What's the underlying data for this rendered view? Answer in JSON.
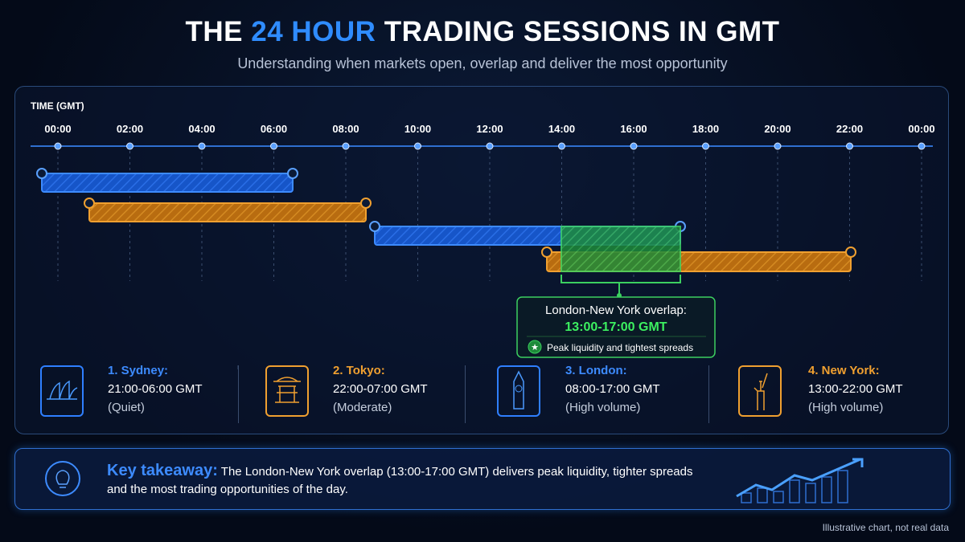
{
  "header": {
    "title": {
      "before": "THE",
      "highlight": "24 HOUR",
      "after": "TRADING SESSIONS IN GMT"
    },
    "subtitle": "Understanding when markets open, overlap and deliver the most opportunity"
  },
  "timeline": {
    "axis_label": "TIME (GMT)",
    "ticks": [
      "00:00",
      "02:00",
      "04:00",
      "06:00",
      "08:00",
      "10:00",
      "12:00",
      "14:00",
      "16:00",
      "18:00",
      "20:00",
      "22:00",
      "00:00"
    ]
  },
  "overlap": {
    "title": "London-New York overlap:",
    "time": "13:00-17:00 GMT",
    "note": "Peak liquidity and tightest spreads"
  },
  "sessions": [
    {
      "name": "1. Sydney:",
      "hours": "21:00-06:00 GMT",
      "note": "(Quiet)"
    },
    {
      "name": "2. Tokyo:",
      "hours": "22:00-07:00 GMT",
      "note": "(Moderate)"
    },
    {
      "name": "3. London:",
      "hours": "08:00-17:00 GMT",
      "note": "(High volume)"
    },
    {
      "name": "4. New York:",
      "hours": "13:00-22:00 GMT",
      "note": "(High volume)"
    }
  ],
  "takeaway": {
    "label": "Key takeaway:",
    "text": "The London-New York overlap (13:00-17:00 GMT) delivers peak liquidity, tighter spreads and the most trading opportunities of the day."
  },
  "footnote": "Illustrative chart, not real data"
}
